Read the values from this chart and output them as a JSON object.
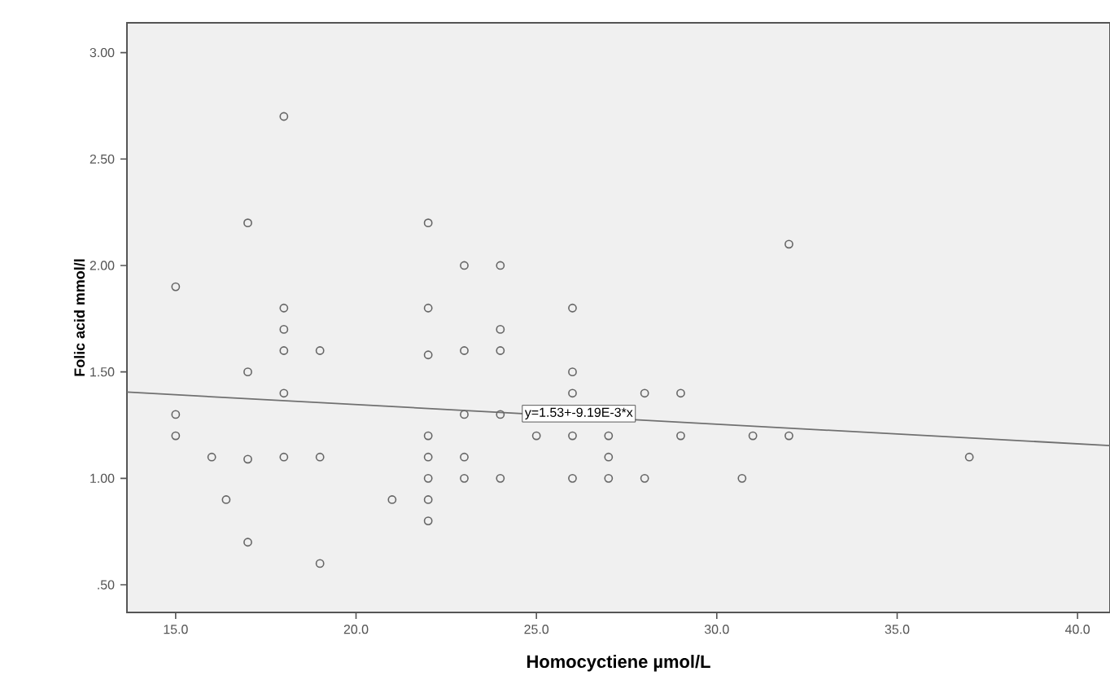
{
  "chart_data": {
    "type": "scatter",
    "xlabel": "Homocyctiene µmol/L",
    "ylabel": "Folic acid mmol/l",
    "xlim": [
      13.65,
      40.9
    ],
    "ylim": [
      0.37,
      3.14
    ],
    "xticks": [
      {
        "value": 15,
        "label": "15.0"
      },
      {
        "value": 20,
        "label": "20.0"
      },
      {
        "value": 25,
        "label": "25.0"
      },
      {
        "value": 30,
        "label": "30.0"
      },
      {
        "value": 35,
        "label": "35.0"
      },
      {
        "value": 40,
        "label": "40.0"
      }
    ],
    "yticks": [
      {
        "value": 0.5,
        "label": ".50"
      },
      {
        "value": 1,
        "label": "1.00"
      },
      {
        "value": 1.5,
        "label": "1.50"
      },
      {
        "value": 2,
        "label": "2.00"
      },
      {
        "value": 2.5,
        "label": "2.50"
      },
      {
        "value": 3,
        "label": "3.00"
      }
    ],
    "grid": false,
    "marker": "circle",
    "series": [
      {
        "color": "#666666",
        "x": [
          15,
          15,
          15,
          16,
          16.4,
          17,
          17,
          17,
          17,
          18,
          18,
          18,
          18,
          18,
          18,
          19,
          19,
          19,
          21,
          22,
          22,
          22,
          22,
          22,
          22,
          22,
          22,
          23,
          23,
          23,
          23,
          23,
          24,
          24,
          24,
          24,
          24,
          25,
          26,
          26,
          26,
          26,
          26,
          27,
          27,
          27,
          28,
          28,
          29,
          29,
          30.7,
          31,
          32,
          32,
          37
        ],
        "values": [
          1.9,
          1.3,
          1.2,
          1.1,
          0.9,
          2.2,
          1.5,
          1.09,
          0.7,
          2.7,
          1.8,
          1.7,
          1.6,
          1.4,
          1.1,
          1.6,
          1.1,
          0.6,
          0.9,
          2.2,
          1.8,
          1.58,
          1.2,
          1.1,
          1.0,
          0.9,
          0.8,
          2.0,
          1.6,
          1.3,
          1.1,
          1.0,
          2.0,
          1.7,
          1.6,
          1.3,
          1.0,
          1.2,
          1.8,
          1.5,
          1.4,
          1.2,
          1.0,
          1.2,
          1.1,
          1.0,
          1.4,
          1.0,
          1.4,
          1.2,
          1.0,
          1.2,
          2.1,
          1.2,
          1.1
        ]
      },
      {
        "type": "line",
        "color": "#707070",
        "marker": "none",
        "x": [
          13.65,
          40.9
        ],
        "values": [
          1.405,
          1.154
        ]
      }
    ],
    "annotations": [
      {
        "text": "y=1.53+-9.19E-3*x",
        "x": 24.6,
        "y": 1.304
      }
    ]
  }
}
